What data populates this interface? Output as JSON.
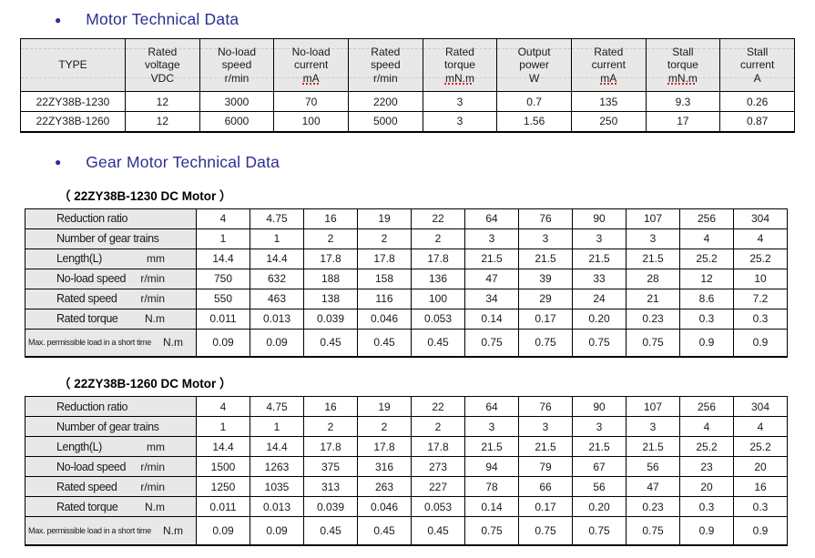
{
  "colors": {
    "heading_blue": "#2d2f92",
    "table_header_bg": "#e8e8e8",
    "spellcheck_red": "#e02020"
  },
  "sections": {
    "motor": {
      "bullet": "●",
      "title": "Motor Technical Data"
    },
    "gear": {
      "bullet": "●",
      "title": "Gear Motor Technical Data"
    }
  },
  "motor_table": {
    "headers": [
      {
        "label": "TYPE",
        "unit": "",
        "squiggle": false
      },
      {
        "label": "Rated\nvoltage",
        "unit": "VDC",
        "squiggle": false
      },
      {
        "label": "No-load\nspeed",
        "unit": "r/min",
        "squiggle": false
      },
      {
        "label": "No-load\ncurrent",
        "unit": "mA",
        "squiggle": true
      },
      {
        "label": "Rated\nspeed",
        "unit": "r/min",
        "squiggle": false
      },
      {
        "label": "Rated\ntorque",
        "unit": "mN.m",
        "squiggle": true
      },
      {
        "label": "Output\npower",
        "unit": "W",
        "squiggle": false
      },
      {
        "label": "Rated\ncurrent",
        "unit": "mA",
        "squiggle": true
      },
      {
        "label": "Stall\ntorque",
        "unit": "mN.m",
        "squiggle": true
      },
      {
        "label": "Stall\ncurrent",
        "unit": "A",
        "squiggle": false
      }
    ],
    "rows": [
      [
        "22ZY38B-1230",
        "12",
        "3000",
        "70",
        "2200",
        "3",
        "0.7",
        "135",
        "9.3",
        "0.26"
      ],
      [
        "22ZY38B-1260",
        "12",
        "6000",
        "100",
        "5000",
        "3",
        "1.56",
        "250",
        "17",
        "0.87"
      ]
    ]
  },
  "gear_tables": [
    {
      "caption": "（ 22ZY38B-1230 DC Motor ）",
      "rows": [
        {
          "label": "Reduction ratio",
          "unit": "",
          "small": false,
          "values": [
            "4",
            "4.75",
            "16",
            "19",
            "22",
            "64",
            "76",
            "90",
            "107",
            "256",
            "304"
          ]
        },
        {
          "label": "Number of gear trains",
          "unit": "",
          "small": false,
          "values": [
            "1",
            "1",
            "2",
            "2",
            "2",
            "3",
            "3",
            "3",
            "3",
            "4",
            "4"
          ]
        },
        {
          "label": "Length(L)",
          "unit": "mm",
          "small": false,
          "values": [
            "14.4",
            "14.4",
            "17.8",
            "17.8",
            "17.8",
            "21.5",
            "21.5",
            "21.5",
            "21.5",
            "25.2",
            "25.2"
          ]
        },
        {
          "label": "No-load speed",
          "unit": "r/min",
          "small": false,
          "values": [
            "750",
            "632",
            "188",
            "158",
            "136",
            "47",
            "39",
            "33",
            "28",
            "12",
            "10"
          ]
        },
        {
          "label": "Rated speed",
          "unit": "r/min",
          "small": false,
          "values": [
            "550",
            "463",
            "138",
            "116",
            "100",
            "34",
            "29",
            "24",
            "21",
            "8.6",
            "7.2"
          ]
        },
        {
          "label": "Rated torque",
          "unit": "N.m",
          "small": false,
          "values": [
            "0.011",
            "0.013",
            "0.039",
            "0.046",
            "0.053",
            "0.14",
            "0.17",
            "0.20",
            "0.23",
            "0.3",
            "0.3"
          ]
        },
        {
          "label": "Max. permissible load in a short time",
          "unit": "N.m",
          "small": true,
          "values": [
            "0.09",
            "0.09",
            "0.45",
            "0.45",
            "0.45",
            "0.75",
            "0.75",
            "0.75",
            "0.75",
            "0.9",
            "0.9"
          ]
        }
      ]
    },
    {
      "caption": "（ 22ZY38B-1260 DC Motor ）",
      "rows": [
        {
          "label": "Reduction ratio",
          "unit": "",
          "small": false,
          "values": [
            "4",
            "4.75",
            "16",
            "19",
            "22",
            "64",
            "76",
            "90",
            "107",
            "256",
            "304"
          ]
        },
        {
          "label": "Number of gear trains",
          "unit": "",
          "small": false,
          "values": [
            "1",
            "1",
            "2",
            "2",
            "2",
            "3",
            "3",
            "3",
            "3",
            "4",
            "4"
          ]
        },
        {
          "label": "Length(L)",
          "unit": "mm",
          "small": false,
          "values": [
            "14.4",
            "14.4",
            "17.8",
            "17.8",
            "17.8",
            "21.5",
            "21.5",
            "21.5",
            "21.5",
            "25.2",
            "25.2"
          ]
        },
        {
          "label": "No-load speed",
          "unit": "r/min",
          "small": false,
          "values": [
            "1500",
            "1263",
            "375",
            "316",
            "273",
            "94",
            "79",
            "67",
            "56",
            "23",
            "20"
          ]
        },
        {
          "label": "Rated speed",
          "unit": "r/min",
          "small": false,
          "values": [
            "1250",
            "1035",
            "313",
            "263",
            "227",
            "78",
            "66",
            "56",
            "47",
            "20",
            "16"
          ]
        },
        {
          "label": "Rated torque",
          "unit": "N.m",
          "small": false,
          "values": [
            "0.011",
            "0.013",
            "0.039",
            "0.046",
            "0.053",
            "0.14",
            "0.17",
            "0.20",
            "0.23",
            "0.3",
            "0.3"
          ]
        },
        {
          "label": "Max. permissible load in a short time",
          "unit": "N.m",
          "small": true,
          "values": [
            "0.09",
            "0.09",
            "0.45",
            "0.45",
            "0.45",
            "0.75",
            "0.75",
            "0.75",
            "0.75",
            "0.9",
            "0.9"
          ]
        }
      ]
    }
  ]
}
